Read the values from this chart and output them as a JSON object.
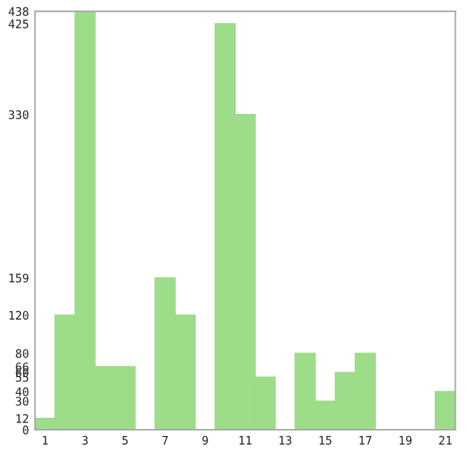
{
  "chart_data": {
    "type": "bar",
    "categories": [
      "1",
      null,
      "3",
      null,
      "5",
      null,
      "7",
      null,
      "9",
      null,
      "11",
      null,
      "13",
      null,
      "15",
      null,
      "17",
      null,
      "19",
      null,
      "21"
    ],
    "values": [
      12,
      120,
      438,
      66,
      66,
      0,
      159,
      120,
      0,
      425,
      330,
      55,
      0,
      80,
      30,
      60,
      80,
      0,
      0,
      0,
      40
    ],
    "color": "#9ddc88",
    "ylim": [
      0,
      438
    ],
    "yticks": [
      0,
      12,
      30,
      40,
      55,
      60,
      66,
      80,
      120,
      159,
      330,
      425,
      438
    ],
    "grid": false
  }
}
